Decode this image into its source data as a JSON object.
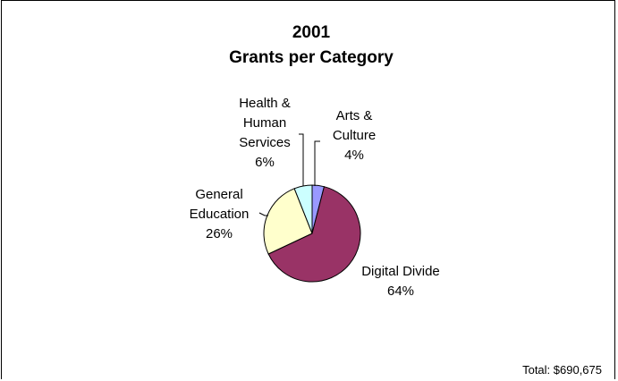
{
  "chart_data": {
    "type": "pie",
    "title": [
      "2001",
      "Grants per Category"
    ],
    "slices": [
      {
        "label": [
          "Arts &",
          "Culture"
        ],
        "pct_label": "4%",
        "value": 4,
        "color": "#9999ff"
      },
      {
        "label": [
          "Digital Divide"
        ],
        "pct_label": "64%",
        "value": 64,
        "color": "#993366"
      },
      {
        "label": [
          "General",
          "Education"
        ],
        "pct_label": "26%",
        "value": 26,
        "color": "#ffffcc"
      },
      {
        "label": [
          "Health &",
          "Human",
          "Services"
        ],
        "pct_label": "6%",
        "value": 6,
        "color": "#ccffff"
      }
    ],
    "footnote": "Total: $690,675"
  }
}
